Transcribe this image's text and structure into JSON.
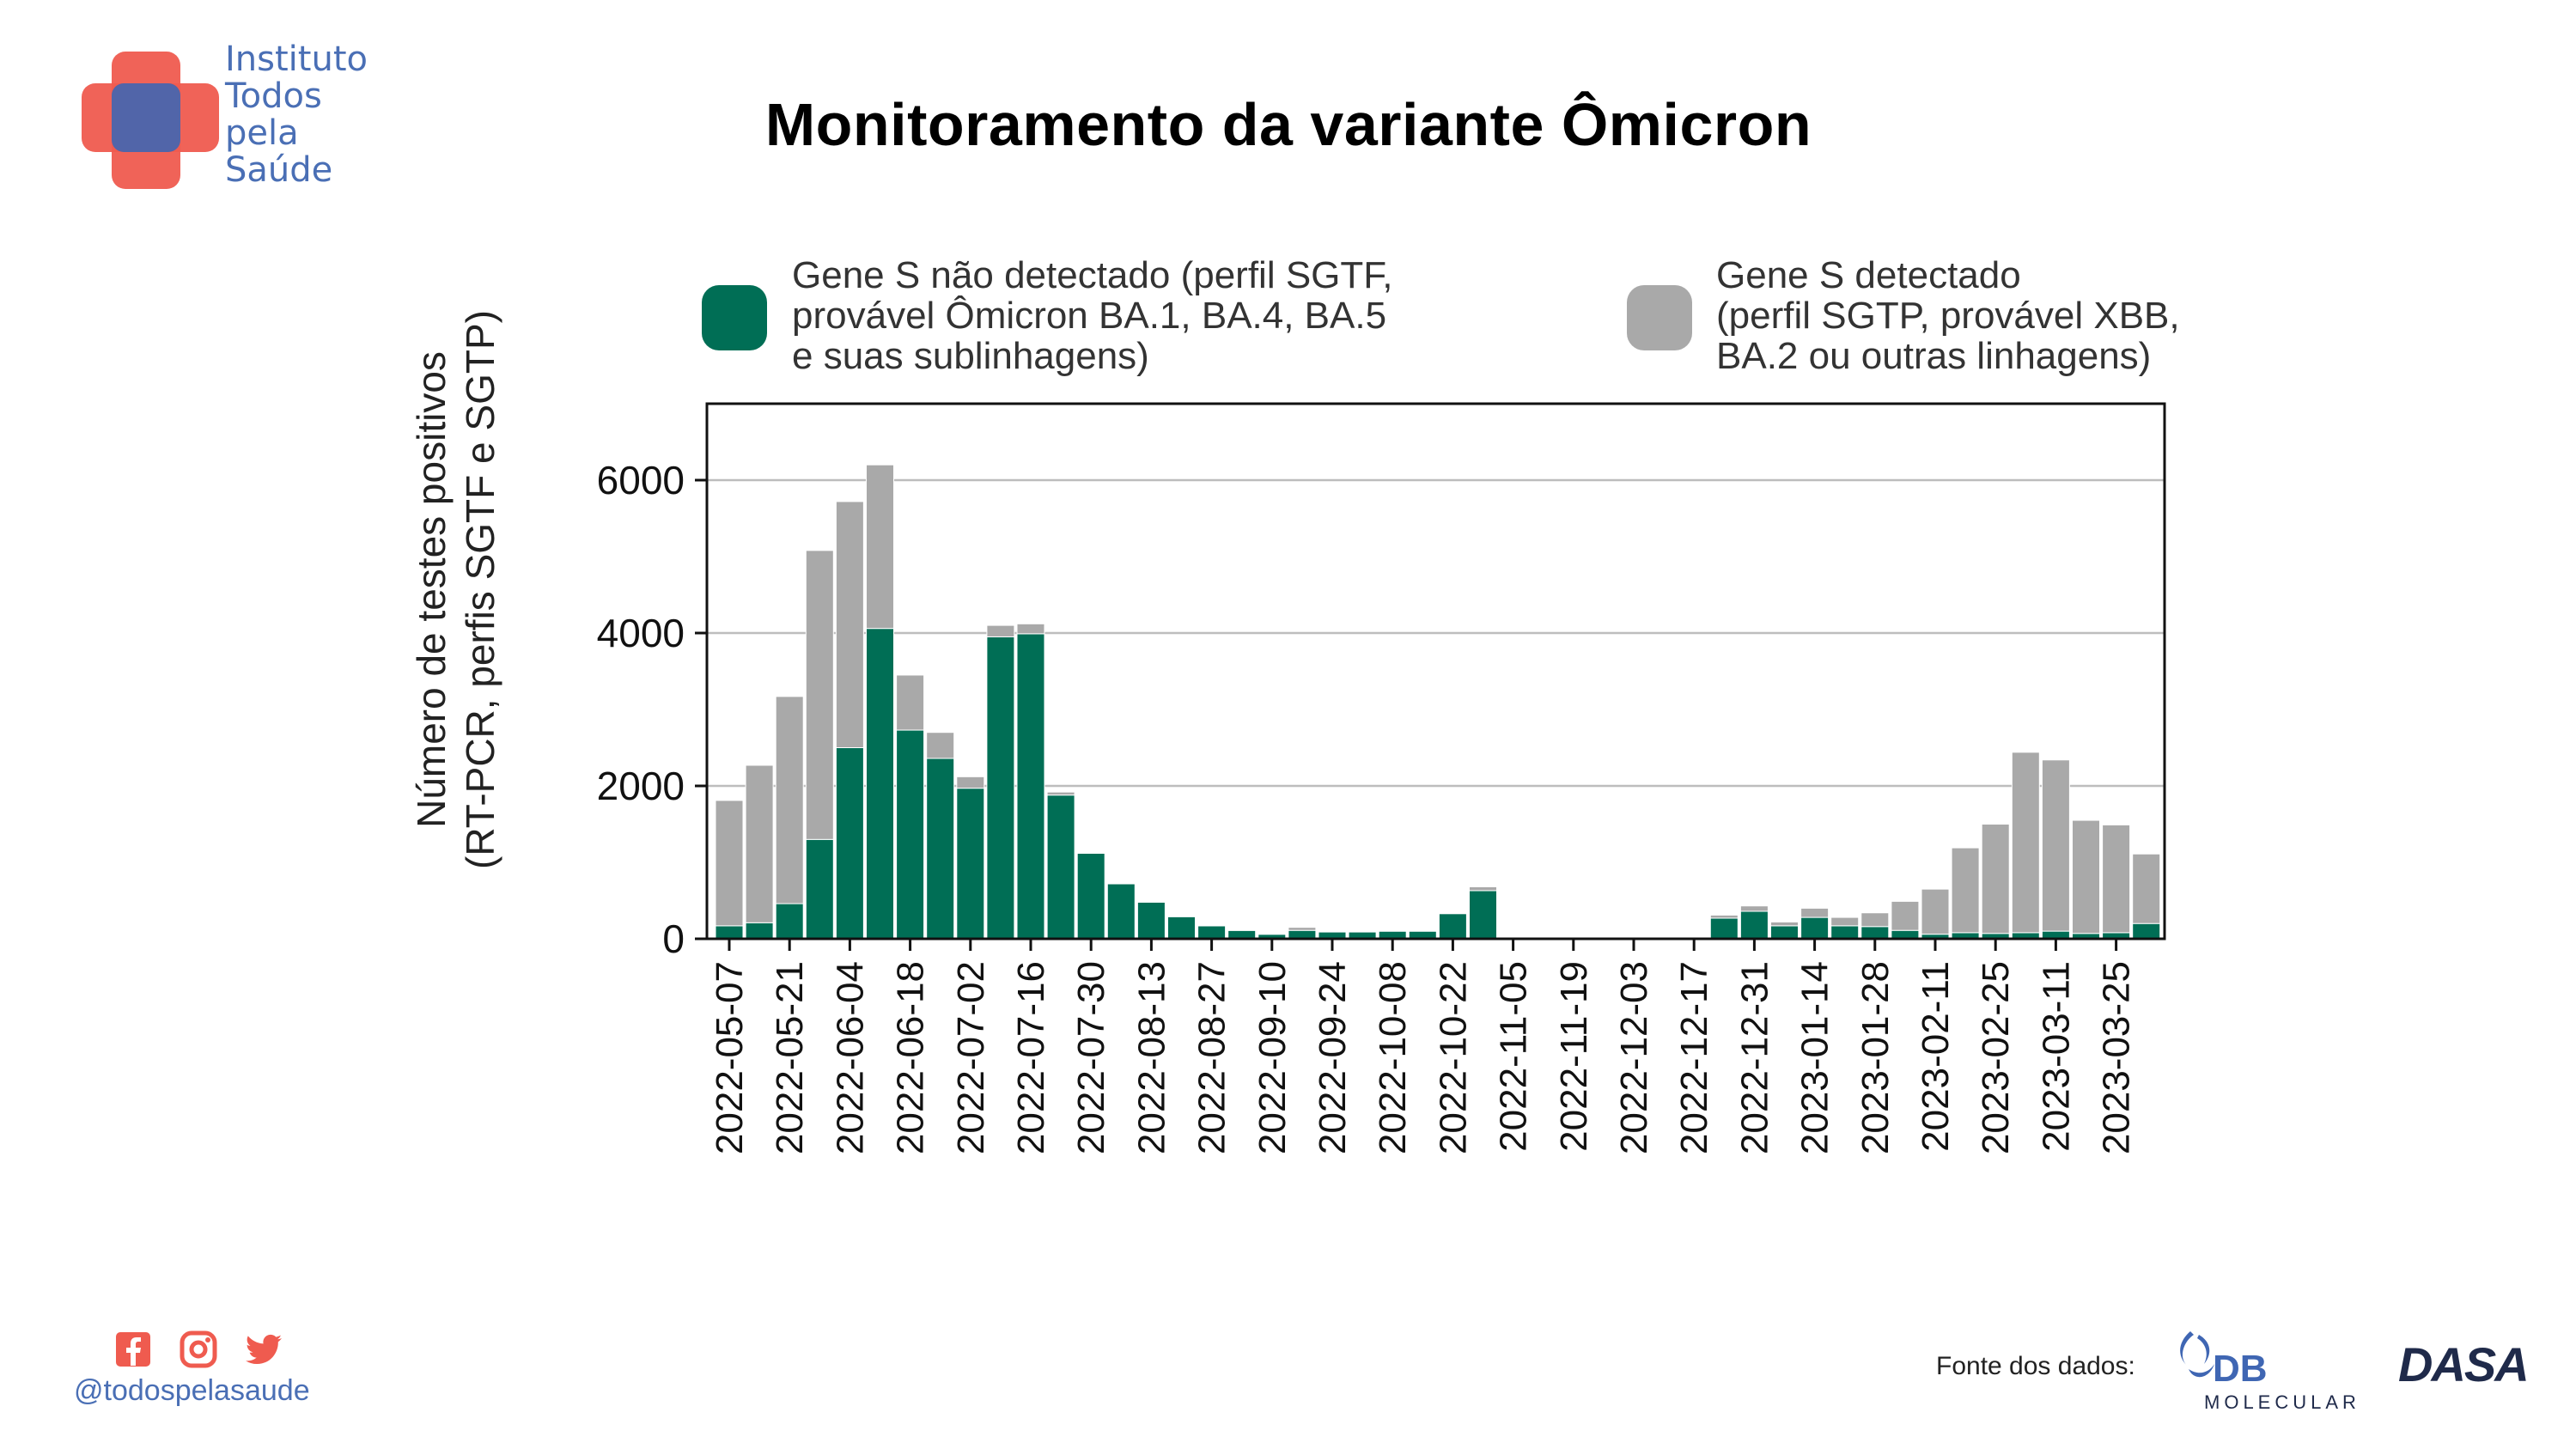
{
  "brand": {
    "name_lines": [
      "Instituto",
      "Todos",
      "pela",
      "Saúde"
    ],
    "handle": "@todospelasaude",
    "social_icons": [
      "facebook-icon",
      "instagram-icon",
      "twitter-icon"
    ],
    "red": "#ef5b4f",
    "blue": "#3f66b3"
  },
  "title": "Monitoramento da variante Ômicron",
  "footer": {
    "source_label": "Fonte dos dados:",
    "db_logo_text": "DB",
    "db_logo_sub": "MOLECULAR",
    "dasa_logo_text": "DASA"
  },
  "chart_data": {
    "type": "bar",
    "stacked": true,
    "ylabel_lines": [
      "Número de testes positivos",
      "(RT-PCR, perfis SGTF e SGTP)"
    ],
    "ylim": [
      0,
      7000
    ],
    "yticks": [
      0,
      2000,
      4000,
      6000
    ],
    "grid": "horizontal",
    "legend_position": "top",
    "categories": [
      "2022-05-07",
      "2022-05-14",
      "2022-05-21",
      "2022-05-28",
      "2022-06-04",
      "2022-06-11",
      "2022-06-18",
      "2022-06-25",
      "2022-07-02",
      "2022-07-09",
      "2022-07-16",
      "2022-07-23",
      "2022-07-30",
      "2022-08-06",
      "2022-08-13",
      "2022-08-20",
      "2022-08-27",
      "2022-09-03",
      "2022-09-10",
      "2022-09-17",
      "2022-09-24",
      "2022-10-01",
      "2022-10-08",
      "2022-10-15",
      "2022-10-22",
      "2022-10-29",
      "2022-11-05",
      "2022-11-12",
      "2022-11-19",
      "2022-11-26",
      "2022-12-03",
      "2022-12-10",
      "2022-12-17",
      "2022-12-24",
      "2022-12-31",
      "2023-01-07",
      "2023-01-14",
      "2023-01-21",
      "2023-01-28",
      "2023-02-04",
      "2023-02-11",
      "2023-02-18",
      "2023-02-25",
      "2023-03-04",
      "2023-03-11",
      "2023-03-18",
      "2023-03-25",
      "2023-04-01"
    ],
    "xtick_labels": [
      "2022-05-07",
      "2022-05-21",
      "2022-06-04",
      "2022-06-18",
      "2022-07-02",
      "2022-07-16",
      "2022-07-30",
      "2022-08-13",
      "2022-08-27",
      "2022-09-10",
      "2022-09-24",
      "2022-10-08",
      "2022-10-22",
      "2022-11-05",
      "2022-11-19",
      "2022-12-03",
      "2022-12-17",
      "2022-12-31",
      "2023-01-14",
      "2023-01-28",
      "2023-02-11",
      "2023-02-25",
      "2023-03-11",
      "2023-03-25"
    ],
    "series": [
      {
        "name_lines": [
          "Gene S não detectado (perfil SGTF,",
          "provável Ômicron BA.1, BA.4, BA.5",
          "e suas sublinhagens)"
        ],
        "color": "#006e55",
        "values": [
          170,
          210,
          460,
          1300,
          2500,
          4060,
          2730,
          2360,
          1970,
          3950,
          3990,
          1880,
          1120,
          720,
          480,
          290,
          170,
          110,
          60,
          110,
          90,
          90,
          100,
          100,
          330,
          630,
          0,
          0,
          0,
          0,
          0,
          0,
          0,
          270,
          360,
          170,
          280,
          170,
          160,
          110,
          60,
          80,
          70,
          80,
          100,
          70,
          80,
          200
        ]
      },
      {
        "name_lines": [
          "Gene S detectado",
          "(perfil SGTP, provável XBB,",
          "BA.2 ou outras linhagens)"
        ],
        "color": "#a9a9a9",
        "values": [
          1640,
          2060,
          2710,
          3780,
          3220,
          2140,
          720,
          340,
          150,
          150,
          130,
          40,
          10,
          10,
          10,
          10,
          10,
          10,
          10,
          40,
          10,
          10,
          10,
          10,
          10,
          50,
          10,
          10,
          10,
          10,
          10,
          10,
          10,
          40,
          70,
          50,
          120,
          110,
          180,
          380,
          590,
          1110,
          1430,
          2360,
          2240,
          1480,
          1410,
          910
        ]
      }
    ]
  }
}
